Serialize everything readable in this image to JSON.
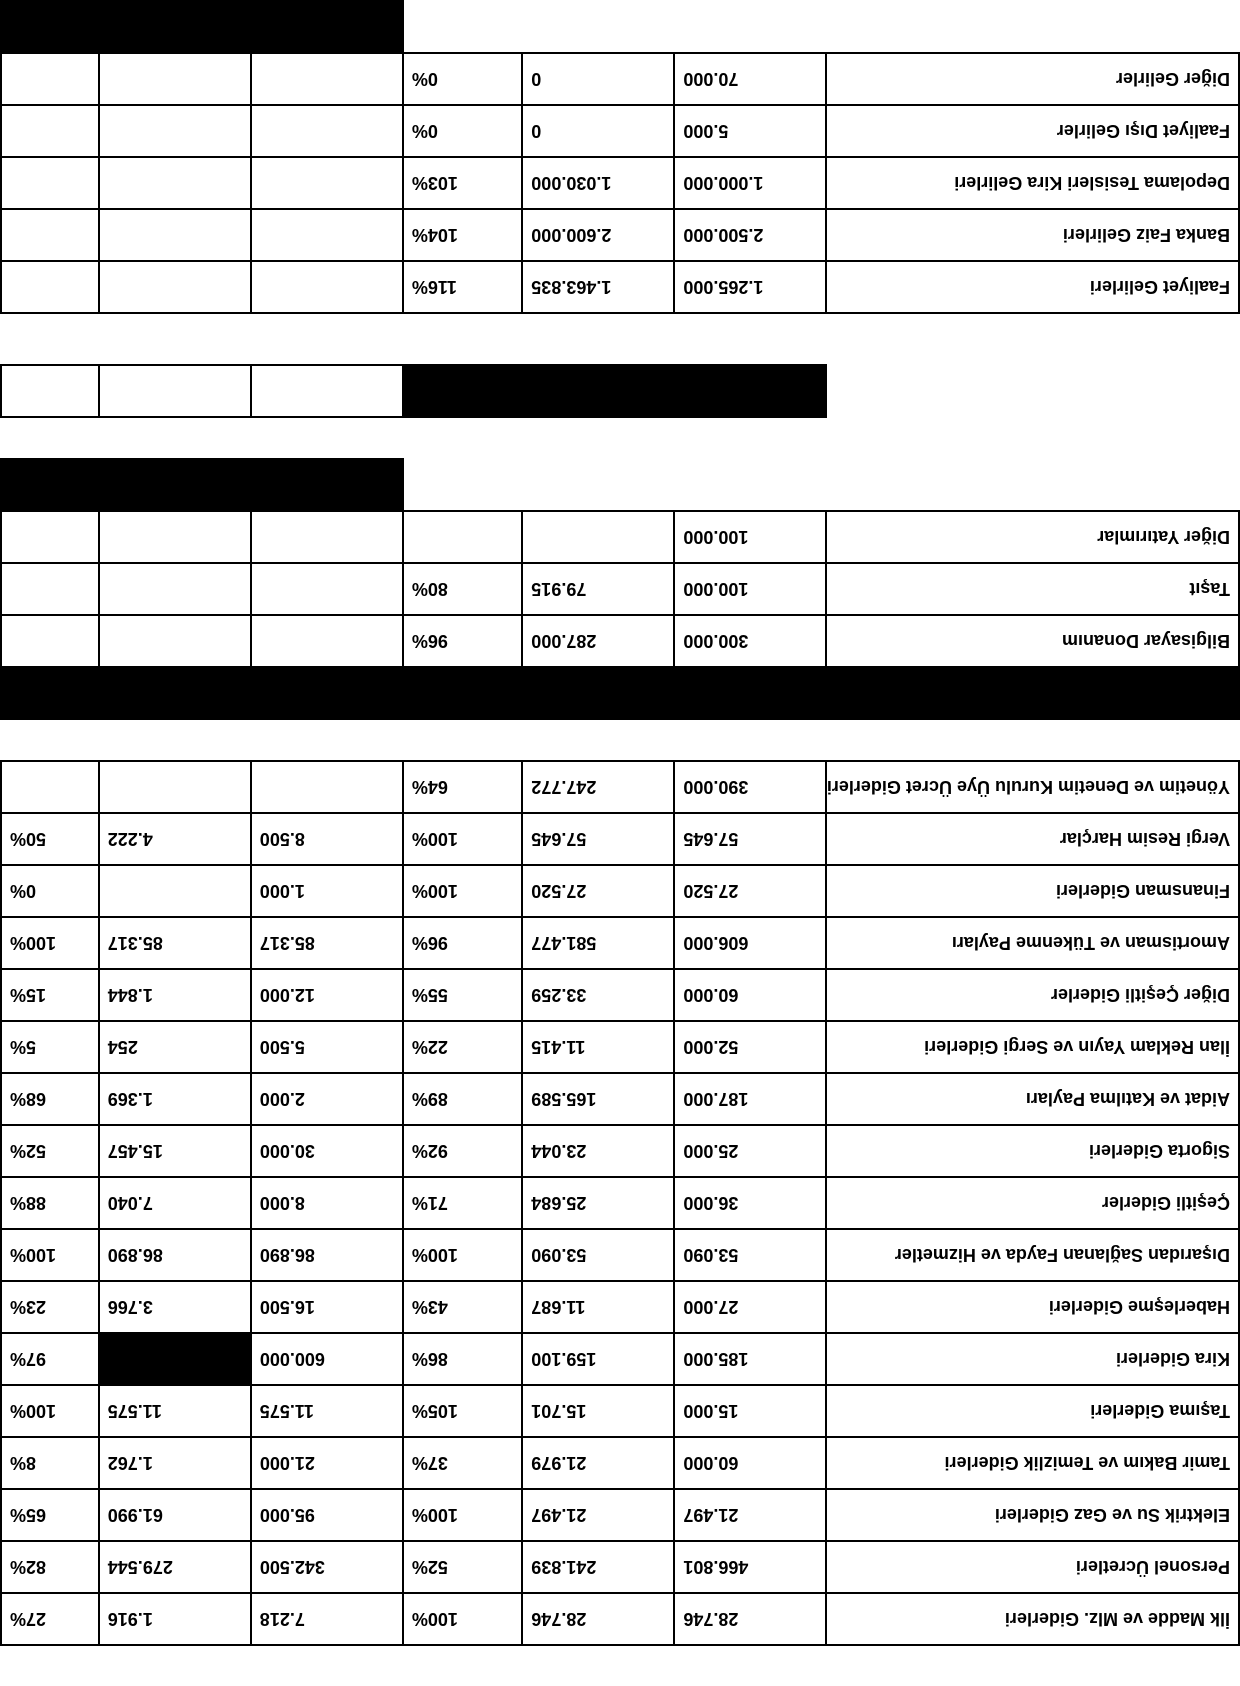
{
  "colors": {
    "page_bg": "#ffffff",
    "border": "#000000",
    "text": "#000000",
    "fill_black": "#000000"
  },
  "typography": {
    "font_family": "Arial",
    "font_size_pt": 14,
    "font_weight": "900"
  },
  "layout": {
    "rotated_180": true,
    "columns": [
      "label",
      "num1",
      "num2",
      "pct1",
      "num3",
      "num4",
      "pct2"
    ]
  },
  "top_block": {
    "rows": [
      {
        "label": "İlk Madde ve Mlz. Giderleri",
        "c1": "28.746",
        "c2": "28.746",
        "p1": "100%",
        "c3": "7.218",
        "c4": "1.916",
        "p2": "27%"
      },
      {
        "label": "Personel Ücretleri",
        "c1": "466.801",
        "c2": "241.839",
        "p1": "52%",
        "c3": "342.500",
        "c4": "279.544",
        "p2": "82%"
      },
      {
        "label": "Elektrik Su ve Gaz Giderleri",
        "c1": "21.497",
        "c2": "21.497",
        "p1": "100%",
        "c3": "95.000",
        "c4": "61.990",
        "p2": "65%"
      },
      {
        "label": "Tamir Bakım ve Temizlik Giderleri",
        "c1": "60.000",
        "c2": "21.979",
        "p1": "37%",
        "c3": "21.000",
        "c4": "1.762",
        "p2": "8%"
      },
      {
        "label": "Taşıma Giderleri",
        "c1": "15.000",
        "c2": "15.701",
        "p1": "105%",
        "c3": "11.575",
        "c4": "11.575",
        "p2": "100%"
      },
      {
        "label": "Kira Giderleri",
        "c1": "185.000",
        "c2": "159.100",
        "p1": "86%",
        "c3": "600.000",
        "c4_black": true,
        "p2": "97%"
      },
      {
        "label": "Haberleşme Giderleri",
        "c1": "27.000",
        "c2": "11.687",
        "p1": "43%",
        "c3": "16.500",
        "c4": "3.766",
        "p2": "23%"
      },
      {
        "label": "Dışarıdan Sağlanan Fayda ve Hizmetler",
        "c1": "53.090",
        "c2": "53.090",
        "p1": "100%",
        "c3": "86.890",
        "c4": "86.890",
        "p2": "100%"
      },
      {
        "label": "Çeşitli Giderler",
        "c1": "36.000",
        "c2": "25.684",
        "p1": "71%",
        "c3": "8.000",
        "c4": "7.040",
        "p2": "88%"
      },
      {
        "label": "Sigorta Giderleri",
        "c1": "25.000",
        "c2": "23.044",
        "p1": "92%",
        "c3": "30.000",
        "c4": "15.457",
        "p2": "52%"
      },
      {
        "label": "Aidat ve Katılma Payları",
        "c1": "187.000",
        "c2": "165.589",
        "p1": "89%",
        "c3": "2.000",
        "c4": "1.369",
        "p2": "68%"
      },
      {
        "label": "İlan Reklam Yayın ve Sergi Giderleri",
        "c1": "52.000",
        "c2": "11.415",
        "p1": "22%",
        "c3": "5.500",
        "c4": "254",
        "p2": "5%"
      },
      {
        "label": "Diğer Çeşitli Giderler",
        "c1": "60.000",
        "c2": "33.259",
        "p1": "55%",
        "c3": "12.000",
        "c4": "1.844",
        "p2": "15%"
      },
      {
        "label": "Amortisman ve Tükenme Payları",
        "c1": "606.000",
        "c2": "581.477",
        "p1": "96%",
        "c3": "85.317",
        "c4": "85.317",
        "p2": "100%"
      },
      {
        "label": "Finansman Giderleri",
        "c1": "27.520",
        "c2": "27.520",
        "p1": "100%",
        "c3": "1.000",
        "c4": "",
        "p2": "0%"
      },
      {
        "label": "Vergi Resim Harçlar",
        "c1": "57.645",
        "c2": "57.645",
        "p1": "100%",
        "c3": "8.500",
        "c4": "4.222",
        "p2": "50%"
      },
      {
        "label": "Yönetim ve Denetim Kurulu Üye Ücret Giderleri",
        "c1": "390.000",
        "c2": "247.772",
        "p1": "64%",
        "c3": "",
        "c4": "",
        "p2": ""
      }
    ]
  },
  "mid_block": {
    "header_black": true,
    "rows": [
      {
        "label": "Bilgisayar Donanım",
        "c1": "300.000",
        "c2": "287.000",
        "p1": "96%",
        "c3": "",
        "c4": "",
        "p2": ""
      },
      {
        "label": "Taşıt",
        "c1": "100.000",
        "c2": "79.915",
        "p1": "80%",
        "c3": "",
        "c4": "",
        "p2": ""
      },
      {
        "label": "Diğer Yatırımlar",
        "c1": "100.000",
        "c2": "",
        "p1": "",
        "c3": "",
        "c4": "",
        "p2": ""
      }
    ],
    "tail_black_right3": true
  },
  "bottom_block": {
    "header_black_row": true,
    "rows": [
      {
        "label": "Faaliyet Gelirleri",
        "c1": "1.265.000",
        "c2": "1.463.835",
        "p1": "116%",
        "c3": "",
        "c4": "",
        "p2": ""
      },
      {
        "label": "Banka Faiz Gelirleri",
        "c1": "2.500.000",
        "c2": "2.600.000",
        "p1": "104%",
        "c3": "",
        "c4": "",
        "p2": ""
      },
      {
        "label": "Depolama Tesisleri Kira Gelirleri",
        "c1": "1.000.000",
        "c2": "1.030.000",
        "p1": "103%",
        "c3": "",
        "c4": "",
        "p2": ""
      },
      {
        "label": "Faaliyet Dışı Gelirler",
        "c1": "5.000",
        "c2": "0",
        "p1": "0%",
        "c3": "",
        "c4": "",
        "p2": ""
      },
      {
        "label": "Diğer Gelirler",
        "c1": "70.000",
        "c2": "0",
        "p1": "0%",
        "c3": "",
        "c4": "",
        "p2": ""
      }
    ],
    "tail_black_right3": true
  }
}
